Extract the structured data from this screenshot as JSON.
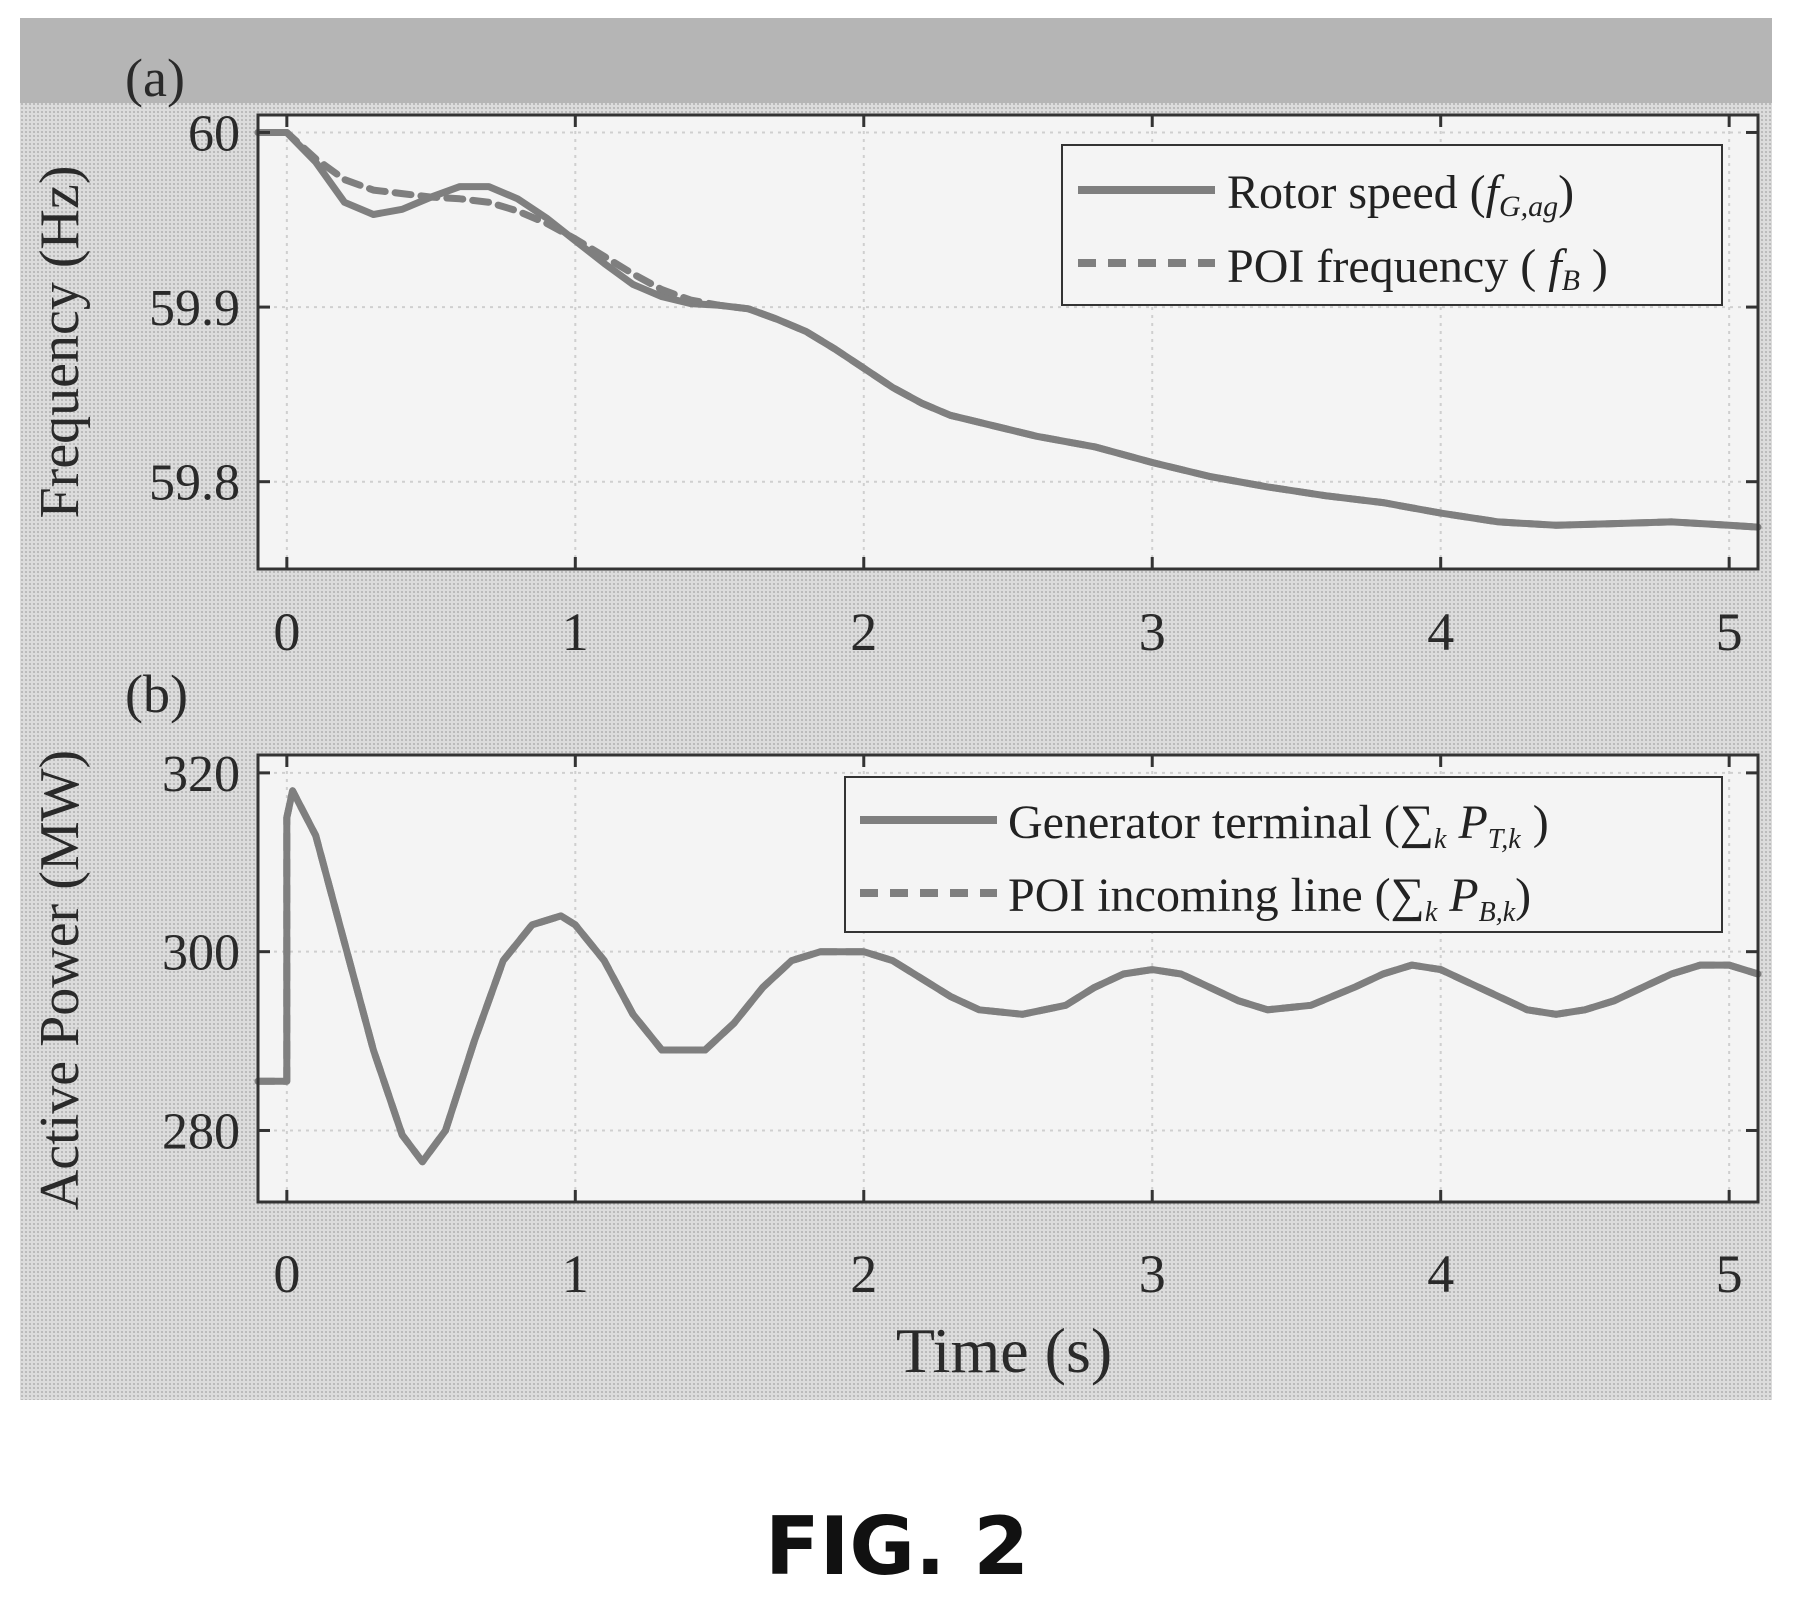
{
  "figure": {
    "caption": "FIG. 2",
    "line_color": "#7f7f7f",
    "panel_background": "#dcdcdc"
  },
  "chart_data": [
    {
      "panel_label": "(a)",
      "type": "line",
      "ylabel": "Frequency (Hz)",
      "xlabel": "",
      "xlim": [
        -0.1,
        5.1
      ],
      "ylim": [
        59.75,
        60.01
      ],
      "xticks": [
        "0",
        "1",
        "2",
        "3",
        "4",
        "5"
      ],
      "xtick_values": [
        0,
        1,
        2,
        3,
        4,
        5
      ],
      "yticks": [
        "60",
        "59.9",
        "59.8"
      ],
      "ytick_values": [
        60,
        59.9,
        59.8
      ],
      "grid": true,
      "legend_placement": "top-right",
      "series": [
        {
          "name": "Rotor speed",
          "legend_symbol": "f",
          "legend_subscript": "G,ag",
          "style": "solid",
          "x": [
            -0.1,
            0,
            0.1,
            0.2,
            0.3,
            0.4,
            0.5,
            0.6,
            0.7,
            0.8,
            0.9,
            1.0,
            1.1,
            1.2,
            1.3,
            1.4,
            1.5,
            1.6,
            1.7,
            1.8,
            1.9,
            2.0,
            2.1,
            2.2,
            2.3,
            2.4,
            2.5,
            2.6,
            2.8,
            3.0,
            3.2,
            3.4,
            3.6,
            3.8,
            4.0,
            4.2,
            4.4,
            4.6,
            4.8,
            5.0,
            5.1
          ],
          "y": [
            60.0,
            60.0,
            59.983,
            59.96,
            59.953,
            59.956,
            59.963,
            59.969,
            59.969,
            59.962,
            59.951,
            59.938,
            59.925,
            59.913,
            59.906,
            59.902,
            59.901,
            59.899,
            59.893,
            59.886,
            59.876,
            59.865,
            59.854,
            59.845,
            59.838,
            59.834,
            59.83,
            59.826,
            59.82,
            59.811,
            59.803,
            59.797,
            59.792,
            59.788,
            59.782,
            59.777,
            59.775,
            59.776,
            59.777,
            59.775,
            59.774
          ]
        },
        {
          "name": "POI frequency",
          "legend_symbol": "f",
          "legend_subscript": "B",
          "style": "dashed",
          "x": [
            -0.1,
            0,
            0.1,
            0.2,
            0.3,
            0.4,
            0.5,
            0.6,
            0.7,
            0.8,
            0.9,
            1.0,
            1.1,
            1.2,
            1.3,
            1.4,
            1.5,
            1.6,
            1.7,
            1.8,
            1.9,
            2.0,
            2.1,
            2.2,
            2.3,
            2.4,
            2.5,
            2.6,
            2.8,
            3.0,
            3.2,
            3.4,
            3.6,
            3.8,
            4.0,
            4.2,
            4.4,
            4.6,
            4.8,
            5.0,
            5.1
          ],
          "y": [
            60.0,
            60.0,
            59.985,
            59.973,
            59.967,
            59.965,
            59.963,
            59.962,
            59.96,
            59.955,
            59.948,
            59.939,
            59.929,
            59.919,
            59.91,
            59.904,
            59.901,
            59.899,
            59.893,
            59.886,
            59.876,
            59.865,
            59.854,
            59.845,
            59.838,
            59.834,
            59.83,
            59.826,
            59.82,
            59.811,
            59.803,
            59.797,
            59.792,
            59.788,
            59.782,
            59.777,
            59.775,
            59.776,
            59.777,
            59.775,
            59.774
          ]
        }
      ]
    },
    {
      "panel_label": "(b)",
      "type": "line",
      "ylabel": "Active Power (MW)",
      "xlabel": "Time (s)",
      "xlim": [
        -0.1,
        5.1
      ],
      "ylim": [
        272,
        322
      ],
      "xticks": [
        "0",
        "1",
        "2",
        "3",
        "4",
        "5"
      ],
      "xtick_values": [
        0,
        1,
        2,
        3,
        4,
        5
      ],
      "yticks": [
        "320",
        "300",
        "280"
      ],
      "ytick_values": [
        320,
        300,
        280
      ],
      "grid": true,
      "legend_placement": "top-right",
      "series": [
        {
          "name": "Generator terminal",
          "legend_symbol": "P",
          "legend_subscript": "T,k",
          "style": "solid",
          "x": [
            -0.1,
            0,
            0,
            0.02,
            0.1,
            0.2,
            0.3,
            0.4,
            0.47,
            0.55,
            0.65,
            0.75,
            0.85,
            0.95,
            1.0,
            1.1,
            1.2,
            1.3,
            1.45,
            1.55,
            1.65,
            1.75,
            1.85,
            1.95,
            2.0,
            2.1,
            2.2,
            2.3,
            2.4,
            2.55,
            2.7,
            2.8,
            2.9,
            3.0,
            3.1,
            3.2,
            3.3,
            3.4,
            3.55,
            3.7,
            3.8,
            3.9,
            4.0,
            4.1,
            4.2,
            4.3,
            4.4,
            4.5,
            4.6,
            4.7,
            4.8,
            4.9,
            5.0,
            5.1
          ],
          "y": [
            285.5,
            285.5,
            315,
            318,
            313,
            301,
            289,
            279.5,
            276.5,
            280,
            290,
            299,
            303,
            304,
            303,
            299,
            293,
            289,
            289,
            292,
            296,
            299,
            300,
            300,
            300,
            299,
            297,
            295,
            293.5,
            293,
            294,
            296,
            297.5,
            298,
            297.5,
            296,
            294.5,
            293.5,
            294,
            296,
            297.5,
            298.5,
            298,
            296.5,
            295,
            293.5,
            293,
            293.5,
            294.5,
            296,
            297.5,
            298.5,
            298.5,
            297.5
          ]
        },
        {
          "name": "POI incoming line",
          "legend_symbol": "P",
          "legend_subscript": "B,k",
          "style": "dashed",
          "x": [
            -0.1,
            0,
            0,
            0.02,
            0.1,
            0.2,
            0.3,
            0.4,
            0.47,
            0.55,
            0.65,
            0.75,
            0.85,
            0.95,
            1.0,
            1.1,
            1.2,
            1.3,
            1.45,
            1.55,
            1.65,
            1.75,
            1.85,
            1.95,
            2.0,
            2.1,
            2.2,
            2.3,
            2.4,
            2.55,
            2.7,
            2.8,
            2.9,
            3.0,
            3.1,
            3.2,
            3.3,
            3.4,
            3.55,
            3.7,
            3.8,
            3.9,
            4.0,
            4.1,
            4.2,
            4.3,
            4.4,
            4.5,
            4.6,
            4.7,
            4.8,
            4.9,
            5.0,
            5.1
          ],
          "y": [
            285.5,
            285.5,
            315,
            318,
            313,
            301,
            289,
            279.5,
            276.5,
            280,
            290,
            299,
            303,
            304,
            303,
            299,
            293,
            289,
            289,
            292,
            296,
            299,
            300,
            300,
            300,
            299,
            297,
            295,
            293.5,
            293,
            294,
            296,
            297.5,
            298,
            297.5,
            296,
            294.5,
            293.5,
            294,
            296,
            297.5,
            298.5,
            298,
            296.5,
            295,
            293.5,
            293,
            293.5,
            294.5,
            296,
            297.5,
            298.5,
            298.5,
            297.5
          ]
        }
      ]
    }
  ]
}
